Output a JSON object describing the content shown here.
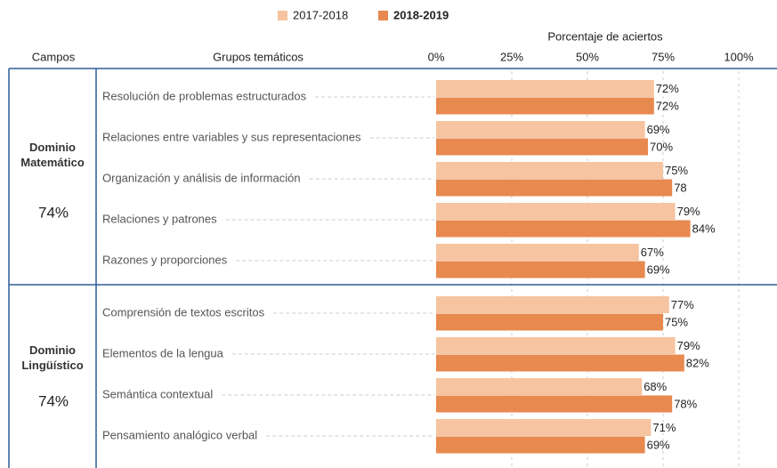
{
  "chart_data": {
    "type": "grouped-hbar",
    "series": [
      {
        "name": "2017-2018",
        "color": "#f6c4a0"
      },
      {
        "name": "2018-2019",
        "color": "#e8894f"
      }
    ],
    "axis_title": "Porcentaje de aciertos",
    "column_headers": [
      "Campos",
      "Grupos temáticos"
    ],
    "xlim": [
      0,
      100
    ],
    "xticks": [
      {
        "value": 0,
        "label": "0%"
      },
      {
        "value": 25,
        "label": "25%"
      },
      {
        "value": 50,
        "label": "50%"
      },
      {
        "value": 75,
        "label": "75%"
      },
      {
        "value": 100,
        "label": "100%"
      }
    ],
    "grid": true,
    "sections": [
      {
        "name": "Dominio Matemático",
        "value": 74,
        "value_label": "74%",
        "groups": [
          {
            "name": "Resolución de problemas estructurados",
            "values": [
              72,
              72
            ],
            "value_labels": [
              "72%",
              "72%"
            ]
          },
          {
            "name": "Relaciones entre variables y sus representaciones",
            "values": [
              69,
              70
            ],
            "value_labels": [
              "69%",
              "70%"
            ]
          },
          {
            "name": "Organización y análisis de información",
            "values": [
              75,
              78
            ],
            "value_labels": [
              "75%",
              "78"
            ]
          },
          {
            "name": "Relaciones y patrones",
            "values": [
              79,
              84
            ],
            "value_labels": [
              "79%",
              "84%"
            ]
          },
          {
            "name": "Razones y proporciones",
            "values": [
              67,
              69
            ],
            "value_labels": [
              "67%",
              "69%"
            ]
          }
        ]
      },
      {
        "name": "Dominio Lingüístico",
        "value": 74,
        "value_label": "74%",
        "groups": [
          {
            "name": "Comprensión de textos escritos",
            "values": [
              77,
              75
            ],
            "value_labels": [
              "77%",
              "75%"
            ]
          },
          {
            "name": "Elementos de la lengua",
            "values": [
              79,
              82
            ],
            "value_labels": [
              "79%",
              "82%"
            ]
          },
          {
            "name": "Semántica contextual",
            "values": [
              68,
              78
            ],
            "value_labels": [
              "68%",
              "78%"
            ]
          },
          {
            "name": "Pensamiento analógico verbal",
            "values": [
              71,
              69
            ],
            "value_labels": [
              "71%",
              "69%"
            ]
          }
        ]
      }
    ]
  }
}
